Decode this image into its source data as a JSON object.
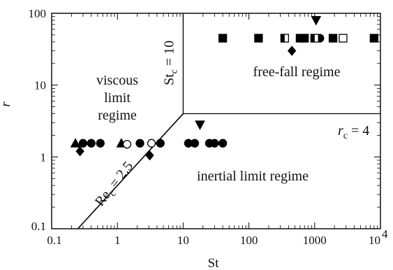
{
  "chart_data": {
    "type": "scatter",
    "xlabel": "St",
    "ylabel": "r",
    "xscale": "log",
    "yscale": "log",
    "xlim": [
      0.1,
      10000
    ],
    "ylim": [
      0.1,
      100
    ],
    "grid": false,
    "x_ticks": [
      "0.1",
      "1",
      "10",
      "100",
      "1000",
      "10"
    ],
    "x_tick_last_exponent": "4",
    "y_ticks": [
      "0.1",
      "1",
      "10",
      "100"
    ],
    "regions": {
      "viscous": [
        "viscous",
        "limit",
        "regime"
      ],
      "free_fall": "free-fall regime",
      "inertial": "inertial limit regime"
    },
    "boundaries": {
      "st_c": {
        "main": "St",
        "sub": "c",
        "rest": " = 10",
        "value": 10
      },
      "r_c": {
        "main": "r",
        "sub": "c",
        "rest": " = 4",
        "value": 4
      },
      "re_c": {
        "main": "Re",
        "sub": "c",
        "rest": " = 2.5",
        "points": [
          [
            0.25,
            0.1
          ],
          [
            10,
            4
          ]
        ]
      }
    },
    "series": [
      {
        "marker": "triangle-up",
        "filled": true,
        "points": [
          [
            0.23,
            1.55
          ],
          [
            1.15,
            1.55
          ]
        ]
      },
      {
        "marker": "diamond",
        "filled": true,
        "points": [
          [
            0.27,
            1.2
          ],
          [
            3.1,
            1.05
          ],
          [
            450,
            30
          ]
        ]
      },
      {
        "marker": "circle",
        "filled": true,
        "points": [
          [
            0.3,
            1.55
          ],
          [
            0.4,
            1.55
          ],
          [
            0.55,
            1.55
          ],
          [
            2.2,
            1.55
          ],
          [
            4.5,
            1.55
          ],
          [
            12,
            1.55
          ],
          [
            15,
            1.55
          ],
          [
            25,
            1.55
          ],
          [
            30,
            1.55
          ],
          [
            40,
            1.55
          ],
          [
            1200,
            45
          ]
        ]
      },
      {
        "marker": "circle",
        "filled": false,
        "points": [
          [
            1.4,
            1.5
          ],
          [
            3.3,
            1.55
          ]
        ]
      },
      {
        "marker": "square",
        "filled": true,
        "points": [
          [
            40,
            45
          ],
          [
            140,
            45
          ],
          [
            600,
            45
          ],
          [
            700,
            45
          ],
          [
            1900,
            45
          ],
          [
            8000,
            45
          ]
        ]
      },
      {
        "marker": "square",
        "filled": false,
        "points": [
          [
            2700,
            45
          ]
        ]
      },
      {
        "marker": "square",
        "filled": "half",
        "points": [
          [
            350,
            45
          ],
          [
            1000,
            45
          ]
        ]
      },
      {
        "marker": "triangle-down",
        "filled": true,
        "points": [
          [
            18,
            2.8
          ],
          [
            1050,
            80
          ]
        ]
      }
    ]
  }
}
